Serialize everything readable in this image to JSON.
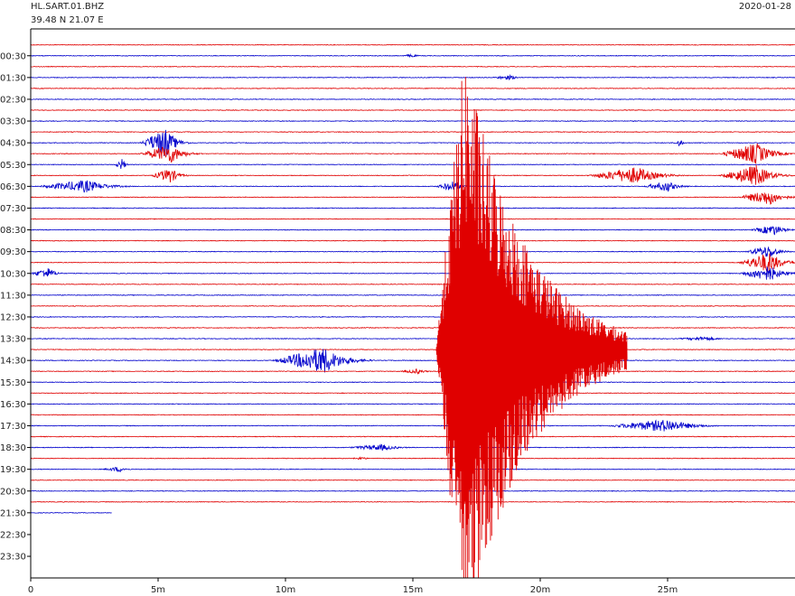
{
  "chart_data": {
    "type": "line",
    "station": "HL.SART.01.BHZ",
    "location": "39.48 N 21.07 E",
    "date": "2020-01-28",
    "xlabel": "",
    "ylabel": "",
    "x_range_minutes": [
      0,
      30
    ],
    "x_ticks": [
      {
        "minute": 0,
        "label": "0"
      },
      {
        "minute": 5,
        "label": "5m"
      },
      {
        "minute": 10,
        "label": "10m"
      },
      {
        "minute": 15,
        "label": "15m"
      },
      {
        "minute": 20,
        "label": "20m"
      },
      {
        "minute": 25,
        "label": "25m"
      }
    ],
    "time_labels": [
      "00:30",
      "01:30",
      "02:30",
      "03:30",
      "04:30",
      "05:30",
      "06:30",
      "07:30",
      "08:30",
      "09:30",
      "10:30",
      "11:30",
      "12:30",
      "13:30",
      "14:30",
      "15:30",
      "16:30",
      "17:30",
      "18:30",
      "19:30",
      "20:30",
      "21:30",
      "22:30",
      "23:30"
    ],
    "trace_colors": [
      "#e00000",
      "#0000cc"
    ],
    "trace_count": 44,
    "first_trace_color": "#e00000",
    "data_ends_at": {
      "trace": 43,
      "minute": 3.2
    },
    "events": [
      {
        "trace": 1,
        "center_min": 15.0,
        "amp": 0.35,
        "dur_min": 1.0
      },
      {
        "trace": 3,
        "center_min": 18.8,
        "amp": 0.45,
        "dur_min": 1.6
      },
      {
        "trace": 9,
        "center_min": 5.3,
        "amp": 2.8,
        "dur_min": 2.0
      },
      {
        "trace": 9,
        "center_min": 25.5,
        "amp": 0.8,
        "dur_min": 0.5
      },
      {
        "trace": 10,
        "center_min": 5.5,
        "amp": 1.8,
        "dur_min": 2.5
      },
      {
        "trace": 10,
        "center_min": 28.5,
        "amp": 2.0,
        "dur_min": 3.0
      },
      {
        "trace": 11,
        "center_min": 3.6,
        "amp": 1.2,
        "dur_min": 0.6
      },
      {
        "trace": 12,
        "center_min": 5.5,
        "amp": 1.4,
        "dur_min": 1.6
      },
      {
        "trace": 12,
        "center_min": 23.8,
        "amp": 1.6,
        "dur_min": 4.0
      },
      {
        "trace": 12,
        "center_min": 28.5,
        "amp": 2.0,
        "dur_min": 3.0
      },
      {
        "trace": 13,
        "center_min": 2.2,
        "amp": 1.2,
        "dur_min": 4.0
      },
      {
        "trace": 13,
        "center_min": 16.6,
        "amp": 1.0,
        "dur_min": 1.5
      },
      {
        "trace": 13,
        "center_min": 25.0,
        "amp": 1.0,
        "dur_min": 2.0
      },
      {
        "trace": 14,
        "center_min": 29.0,
        "amp": 1.5,
        "dur_min": 2.5
      },
      {
        "trace": 17,
        "center_min": 29.2,
        "amp": 1.0,
        "dur_min": 2.0
      },
      {
        "trace": 19,
        "center_min": 29.0,
        "amp": 1.2,
        "dur_min": 2.0
      },
      {
        "trace": 20,
        "center_min": 29.0,
        "amp": 2.0,
        "dur_min": 2.5
      },
      {
        "trace": 21,
        "center_min": 0.7,
        "amp": 1.0,
        "dur_min": 1.5
      },
      {
        "trace": 21,
        "center_min": 29.0,
        "amp": 1.5,
        "dur_min": 2.5
      },
      {
        "trace": 27,
        "center_min": 26.5,
        "amp": 0.4,
        "dur_min": 2.5
      },
      {
        "trace": 29,
        "center_min": 11.5,
        "amp": 2.5,
        "dur_min": 4.0
      },
      {
        "trace": 30,
        "center_min": 15.2,
        "amp": 0.5,
        "dur_min": 1.5
      },
      {
        "trace": 35,
        "center_min": 25.0,
        "amp": 1.2,
        "dur_min": 5.0
      },
      {
        "trace": 37,
        "center_min": 13.8,
        "amp": 0.6,
        "dur_min": 3.0
      },
      {
        "trace": 38,
        "center_min": 13.0,
        "amp": 0.3,
        "dur_min": 1.0
      },
      {
        "trace": 39,
        "center_min": 3.5,
        "amp": 0.5,
        "dur_min": 1.5
      }
    ],
    "main_event": {
      "trace_start": 13,
      "trace_end": 44,
      "center_min": 16.8,
      "dur_min": 7.5,
      "color": "#e00000"
    },
    "grid": false
  }
}
